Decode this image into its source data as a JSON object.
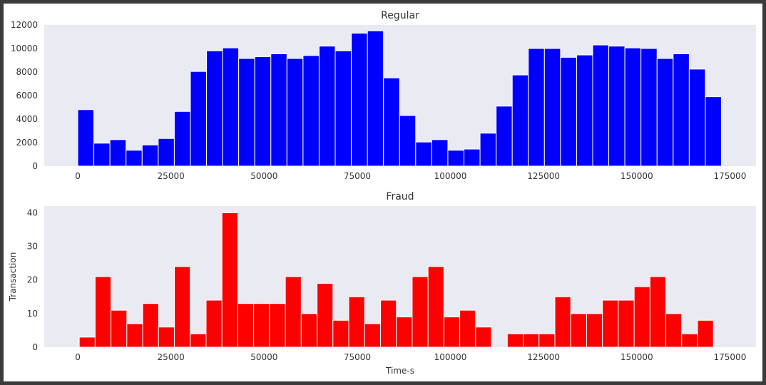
{
  "chart_data": [
    {
      "type": "bar",
      "title": "Regular",
      "xlabel": "",
      "ylabel": "",
      "xlim": [
        -9000,
        182000
      ],
      "ylim": [
        0,
        12000
      ],
      "xticks": [
        0,
        25000,
        50000,
        75000,
        100000,
        125000,
        150000,
        175000
      ],
      "yticks": [
        0,
        2000,
        4000,
        6000,
        8000,
        10000,
        12000
      ],
      "x_start": 0,
      "bin_width": 4318,
      "color": "#0000ff",
      "grid": false,
      "values": [
        4800,
        1950,
        2250,
        1350,
        1800,
        2350,
        4650,
        8050,
        9800,
        10050,
        9150,
        9300,
        9550,
        9150,
        9400,
        10200,
        9800,
        11300,
        11500,
        7500,
        4300,
        2050,
        2250,
        1350,
        1450,
        2800,
        5100,
        7750,
        10000,
        10000,
        9250,
        9450,
        10300,
        10200,
        10050,
        10000,
        9150,
        9550,
        8250,
        5900
      ]
    },
    {
      "type": "bar",
      "title": "Fraud",
      "xlabel": "Time-s",
      "ylabel": "Transaction",
      "xlim": [
        -9000,
        182000
      ],
      "ylim": [
        0,
        42
      ],
      "xticks": [
        0,
        25000,
        50000,
        75000,
        100000,
        125000,
        150000,
        175000
      ],
      "yticks": [
        0,
        10,
        20,
        30,
        40
      ],
      "x_start": 406,
      "bin_width": 4254,
      "color": "#ff0000",
      "grid": false,
      "values": [
        3,
        21,
        11,
        7,
        13,
        6,
        24,
        4,
        14,
        40,
        13,
        13,
        13,
        21,
        10,
        19,
        8,
        15,
        7,
        14,
        9,
        21,
        24,
        9,
        11,
        6,
        0,
        4,
        4,
        4,
        15,
        10,
        10,
        14,
        14,
        18,
        21,
        10,
        4,
        8
      ]
    }
  ]
}
